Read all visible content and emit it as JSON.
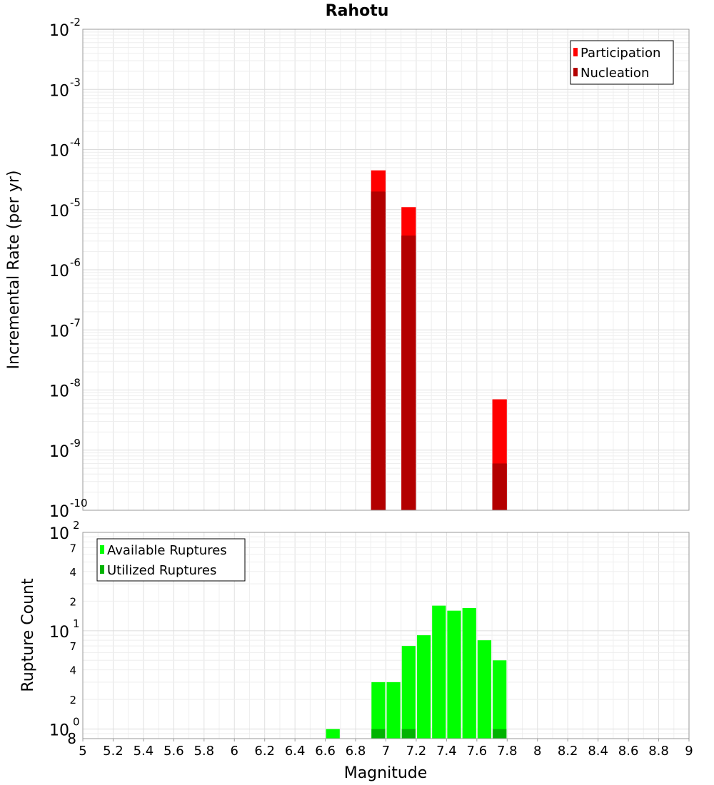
{
  "chart_data": [
    {
      "type": "bar",
      "title": "Rahotu",
      "xlabel": "Magnitude",
      "ylabel": "Incremental Rate (per yr)",
      "xlim": [
        5,
        9
      ],
      "ylim": [
        1e-10,
        0.01
      ],
      "yscale": "log",
      "grid": true,
      "legend": "top-right",
      "bin_width": 0.1,
      "x_ticks": [
        "5",
        "5.2",
        "5.4",
        "5.6",
        "5.8",
        "6",
        "6.2",
        "6.4",
        "6.6",
        "6.8",
        "7",
        "7.2",
        "7.4",
        "7.6",
        "7.8",
        "8",
        "8.2",
        "8.4",
        "8.6",
        "8.8",
        "9"
      ],
      "y_ticks": [
        {
          "base": "10",
          "exp": "-10",
          "value": 1e-10
        },
        {
          "base": "10",
          "exp": "-9",
          "value": 1e-09
        },
        {
          "base": "10",
          "exp": "-8",
          "value": 1e-08
        },
        {
          "base": "10",
          "exp": "-7",
          "value": 1e-07
        },
        {
          "base": "10",
          "exp": "-6",
          "value": 1e-06
        },
        {
          "base": "10",
          "exp": "-5",
          "value": 1e-05
        },
        {
          "base": "10",
          "exp": "-4",
          "value": 0.0001
        },
        {
          "base": "10",
          "exp": "-3",
          "value": 0.001
        },
        {
          "base": "10",
          "exp": "-2",
          "value": 0.01
        }
      ],
      "series": [
        {
          "name": "Participation",
          "color": "#ff0000",
          "x": [
            6.95,
            7.15,
            7.75
          ],
          "values": [
            4.5e-05,
            1.1e-05,
            7e-09
          ]
        },
        {
          "name": "Nucleation",
          "color": "#b30000",
          "x": [
            6.95,
            7.15,
            7.75
          ],
          "values": [
            2e-05,
            3.7e-06,
            6e-10
          ]
        }
      ]
    },
    {
      "type": "bar",
      "xlabel": "Magnitude",
      "ylabel": "Rupture Count",
      "xlim": [
        5,
        9
      ],
      "ylim": [
        0.8,
        100
      ],
      "yscale": "log",
      "grid": true,
      "legend": "top-left",
      "bin_width": 0.1,
      "y_ticks": [
        {
          "base": "10",
          "exp": "0",
          "value": 1
        },
        {
          "base": "10",
          "exp": "1",
          "value": 10
        },
        {
          "base": "10",
          "exp": "2",
          "value": 100
        }
      ],
      "y_minor_ticks": [
        {
          "label": "8",
          "value": 0.8
        },
        {
          "label": "2",
          "value": 2
        },
        {
          "label": "4",
          "value": 4
        },
        {
          "label": "7",
          "value": 7
        },
        {
          "label": "2",
          "value": 20
        },
        {
          "label": "4",
          "value": 40
        },
        {
          "label": "7",
          "value": 70
        }
      ],
      "series": [
        {
          "name": "Available Ruptures",
          "color": "#00ff00",
          "x": [
            6.65,
            6.95,
            7.05,
            7.15,
            7.25,
            7.35,
            7.45,
            7.55,
            7.65,
            7.75
          ],
          "values": [
            1,
            3,
            3,
            7,
            9,
            18,
            16,
            17,
            8,
            5
          ]
        },
        {
          "name": "Utilized Ruptures",
          "color": "#00b300",
          "x": [
            6.95,
            7.15,
            7.75
          ],
          "values": [
            1,
            1,
            1
          ]
        }
      ]
    }
  ]
}
